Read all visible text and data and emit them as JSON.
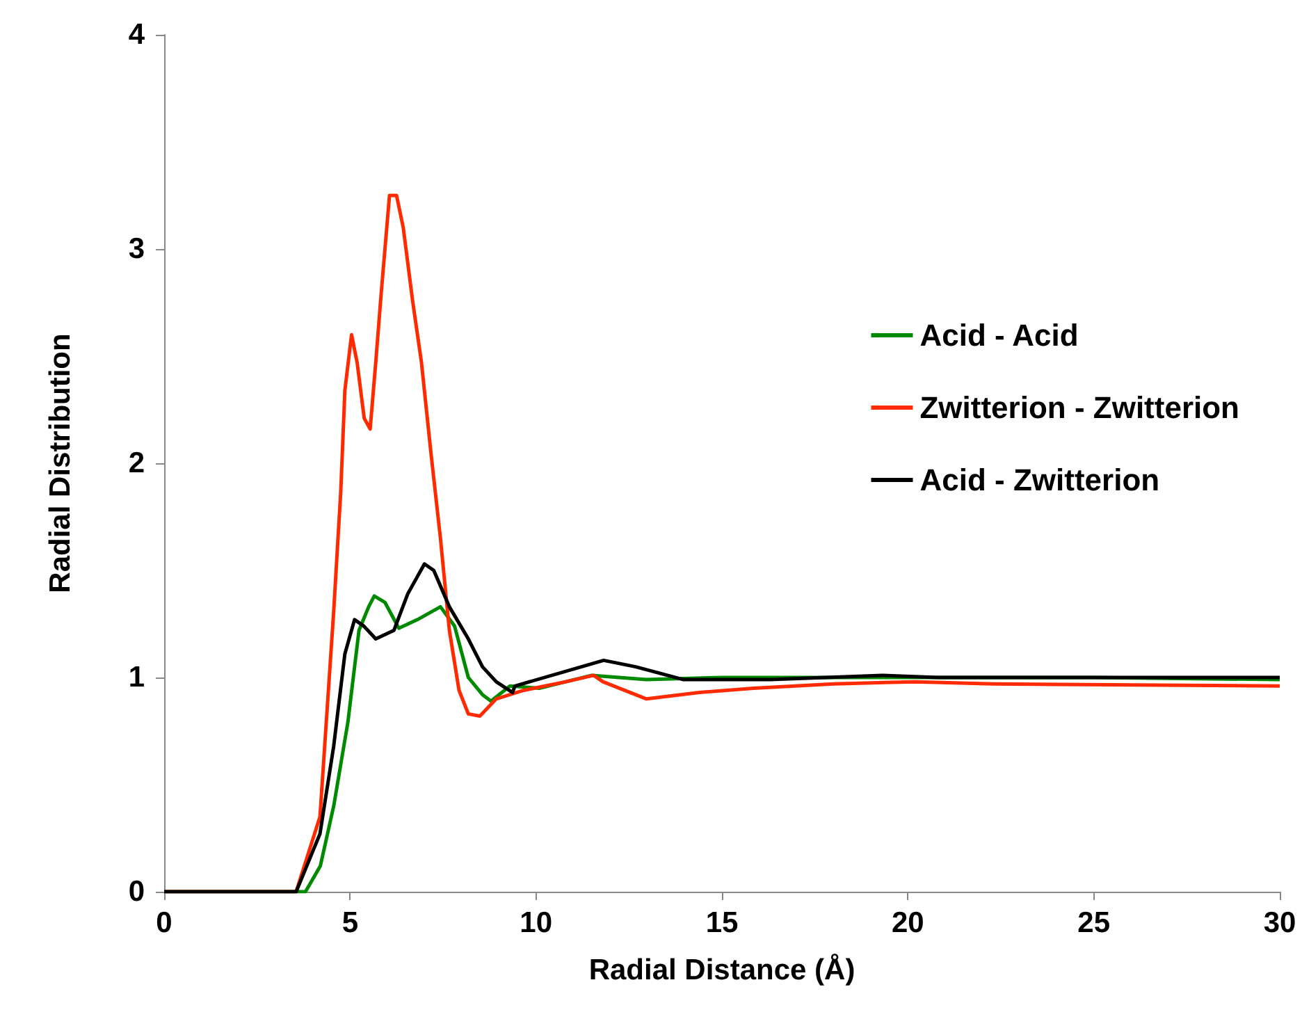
{
  "chart_data": {
    "type": "line",
    "xlabel": "Radial Distance (Å)",
    "ylabel": "Radial Distribution",
    "xlim": [
      0,
      30
    ],
    "xticks": [
      0,
      5,
      10,
      15,
      20,
      25,
      30
    ],
    "ylim": [
      0,
      4
    ],
    "yticks": [
      0,
      1,
      2,
      3,
      4
    ],
    "grid": false,
    "legend": "right",
    "marker": "none",
    "line_style": "solid",
    "series": [
      {
        "name": "Acid - Acid",
        "color": "#008a00",
        "x": [
          0,
          3.8,
          4.2,
          4.56,
          4.94,
          5.24,
          5.5,
          5.65,
          5.94,
          6.31,
          6.81,
          7.43,
          7.81,
          8.18,
          8.56,
          8.79,
          9.3,
          10.1,
          11.5,
          12.97,
          15,
          20,
          25,
          30
        ],
        "values": [
          0,
          0,
          0.12,
          0.4,
          0.79,
          1.22,
          1.33,
          1.38,
          1.35,
          1.23,
          1.27,
          1.33,
          1.24,
          1.0,
          0.92,
          0.89,
          0.96,
          0.95,
          1.01,
          0.99,
          1.0,
          1.0,
          1.0,
          0.99
        ]
      },
      {
        "name": "Zwitterion - Zwitterion",
        "color": "#ff2a00",
        "x": [
          0,
          3.55,
          4.19,
          4.56,
          4.75,
          4.86,
          5.04,
          5.19,
          5.38,
          5.54,
          5.69,
          5.84,
          6.06,
          6.25,
          6.43,
          6.68,
          6.92,
          7.18,
          7.43,
          7.67,
          7.93,
          8.18,
          8.49,
          8.93,
          9.67,
          10.8,
          11.55,
          11.8,
          12.97,
          14.4,
          15.84,
          18,
          20.2,
          22.3,
          30
        ],
        "values": [
          0,
          0,
          0.35,
          1.31,
          1.87,
          2.34,
          2.6,
          2.47,
          2.21,
          2.16,
          2.47,
          2.8,
          3.25,
          3.25,
          3.1,
          2.76,
          2.47,
          2.04,
          1.65,
          1.22,
          0.94,
          0.83,
          0.82,
          0.9,
          0.94,
          0.98,
          1.01,
          0.98,
          0.9,
          0.93,
          0.95,
          0.97,
          0.98,
          0.97,
          0.96
        ]
      },
      {
        "name": "Acid - Zwitterion",
        "color": "#000000",
        "x": [
          0,
          3.55,
          4.19,
          4.56,
          4.86,
          5.12,
          5.37,
          5.69,
          6.18,
          6.55,
          7.0,
          7.25,
          7.67,
          8.18,
          8.56,
          8.93,
          9.37,
          9.43,
          11.82,
          12.68,
          13.97,
          16.3,
          19.3,
          20.8,
          25,
          30
        ],
        "values": [
          0,
          0,
          0.27,
          0.68,
          1.11,
          1.27,
          1.24,
          1.18,
          1.22,
          1.39,
          1.53,
          1.5,
          1.33,
          1.18,
          1.05,
          0.98,
          0.93,
          0.96,
          1.08,
          1.05,
          0.99,
          0.99,
          1.01,
          1.0,
          1.0,
          1.0
        ]
      }
    ]
  }
}
